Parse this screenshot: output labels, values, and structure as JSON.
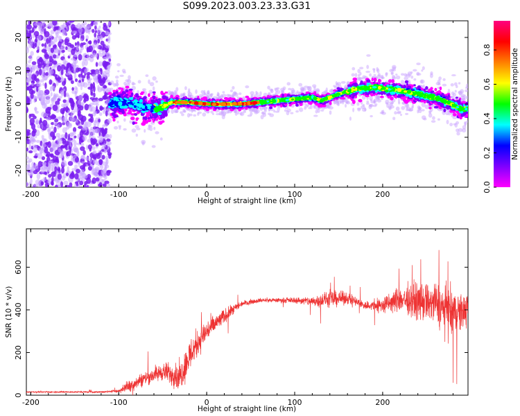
{
  "title": "S099.2023.003.23.33.G31",
  "chart_data": [
    {
      "type": "heatmap",
      "xlabel": "Height of straight line (km)",
      "ylabel": "Frequency (Hz)",
      "xlim": [
        -205,
        297
      ],
      "ylim": [
        -25,
        25
      ],
      "xticks": [
        -200,
        -100,
        0,
        100,
        200
      ],
      "yticks": [
        -20,
        -10,
        0,
        10,
        20
      ],
      "colorbar": {
        "label": "Normalized spectral amplitude",
        "range": [
          0,
          0.97
        ],
        "ticks": [
          0.0,
          0.2,
          0.4,
          0.6,
          0.8
        ],
        "colormap": "hsv-rainbow",
        "colors": [
          "#ff00ff",
          "#7f00ff",
          "#0000ff",
          "#00ffff",
          "#00ff00",
          "#ffff00",
          "#ff7f00",
          "#ff0000",
          "#ff0080"
        ]
      },
      "ridge_center_hz": {
        "x": [
          -110,
          -90,
          -70,
          -55,
          -40,
          -20,
          0,
          20,
          40,
          60,
          80,
          100,
          120,
          130,
          150,
          170,
          190,
          210,
          230,
          250,
          270,
          290
        ],
        "y": [
          0,
          0.5,
          -1,
          -1.5,
          0.5,
          0.5,
          0,
          0,
          0,
          0.5,
          1,
          1.5,
          2,
          1,
          3,
          4.5,
          5,
          4.5,
          3.5,
          2.5,
          1,
          -1.5
        ]
      },
      "noise_band_x": [
        -205,
        -110
      ]
    },
    {
      "type": "line",
      "xlabel": "Height of straight line (km)",
      "ylabel": "SNR (10 * v/v)",
      "xlim": [
        -205,
        297
      ],
      "ylim": [
        0,
        780
      ],
      "xticks": [
        -200,
        -100,
        0,
        100,
        200
      ],
      "yticks": [
        0,
        200,
        400,
        600
      ],
      "color": "#ee3333",
      "envelope": {
        "x": [
          -205,
          -120,
          -100,
          -90,
          -70,
          -50,
          -30,
          -20,
          -10,
          0,
          20,
          40,
          60,
          80,
          100,
          120,
          140,
          160,
          180,
          200,
          220,
          240,
          260,
          280,
          297
        ],
        "mean": [
          15,
          15,
          20,
          40,
          80,
          110,
          90,
          180,
          250,
          300,
          370,
          430,
          445,
          445,
          445,
          440,
          450,
          455,
          420,
          420,
          450,
          440,
          430,
          380,
          400
        ],
        "amplitude": [
          5,
          5,
          10,
          40,
          50,
          60,
          100,
          120,
          100,
          80,
          50,
          20,
          15,
          15,
          20,
          35,
          60,
          40,
          30,
          60,
          90,
          120,
          150,
          170,
          100
        ]
      }
    }
  ]
}
